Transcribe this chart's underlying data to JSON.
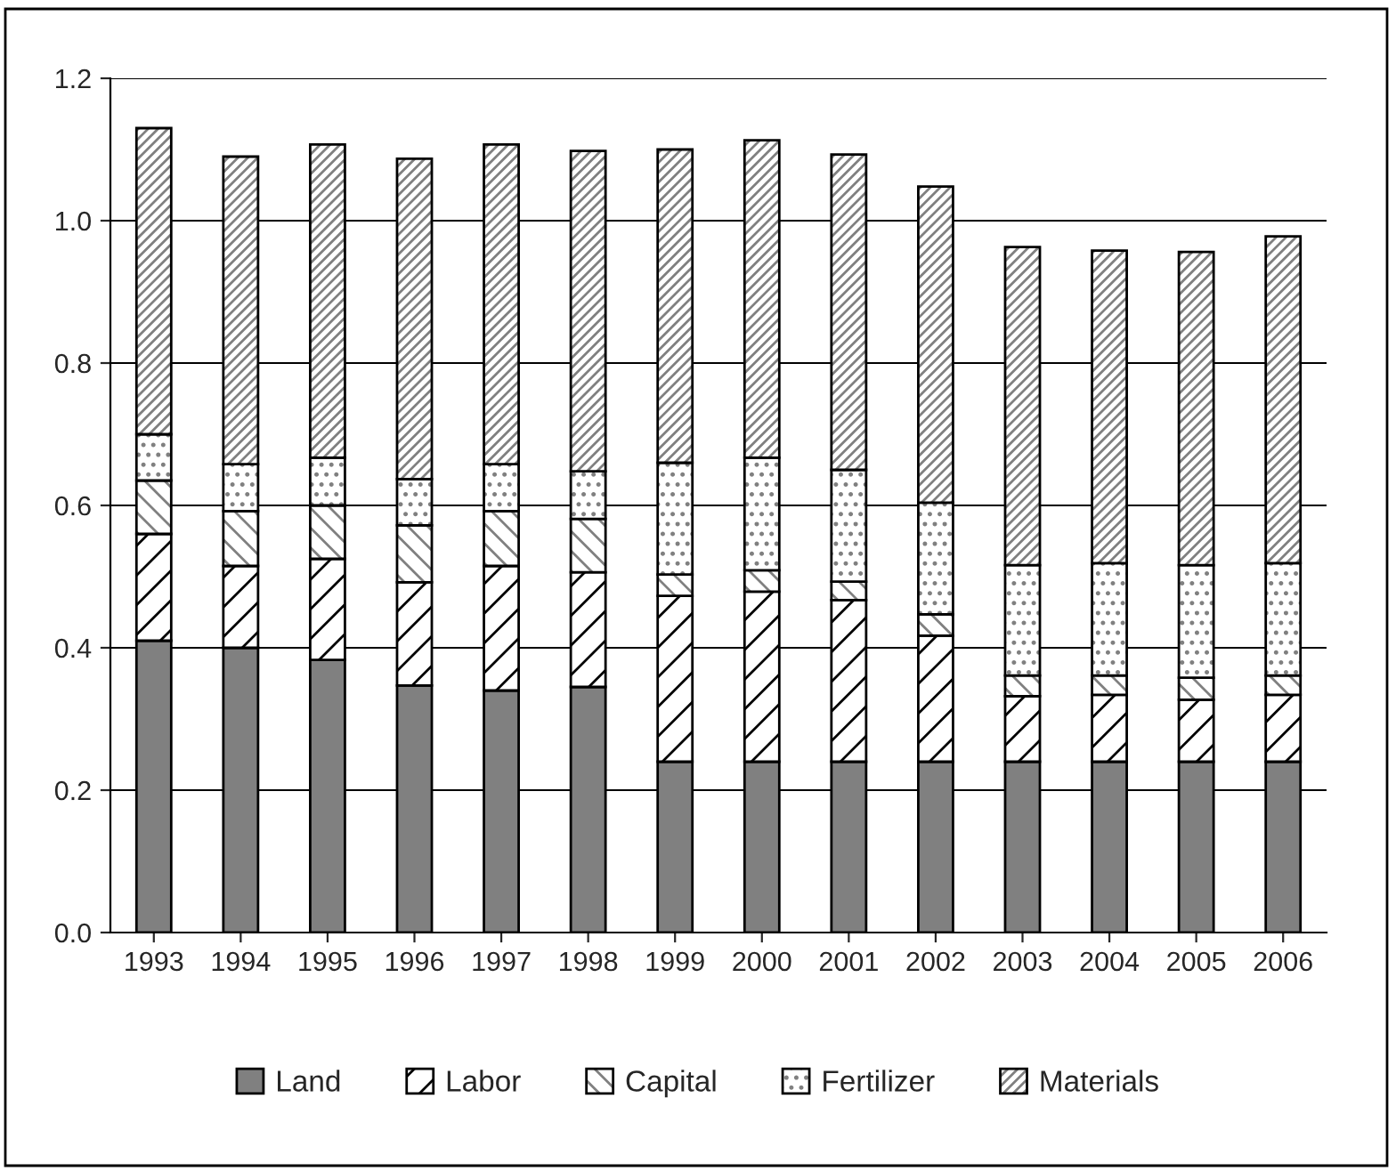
{
  "chart_data": {
    "type": "bar",
    "stacked": true,
    "categories": [
      "1993",
      "1994",
      "1995",
      "1996",
      "1997",
      "1998",
      "1999",
      "2000",
      "2001",
      "2002",
      "2003",
      "2004",
      "2005",
      "2006"
    ],
    "series": [
      {
        "name": "Land",
        "color": "#808080",
        "values": [
          0.41,
          0.4,
          0.383,
          0.347,
          0.34,
          0.345,
          0.24,
          0.24,
          0.24,
          0.24,
          0.24,
          0.24,
          0.24,
          0.24
        ]
      },
      {
        "name": "Labor",
        "color": "#000000",
        "values": [
          0.15,
          0.115,
          0.142,
          0.145,
          0.175,
          0.161,
          0.233,
          0.239,
          0.227,
          0.177,
          0.092,
          0.094,
          0.087,
          0.094
        ]
      },
      {
        "name": "Capital",
        "color": "#000000",
        "values": [
          0.075,
          0.077,
          0.075,
          0.08,
          0.077,
          0.075,
          0.03,
          0.03,
          0.026,
          0.03,
          0.029,
          0.027,
          0.031,
          0.027
        ]
      },
      {
        "name": "Fertilizer",
        "color": "#000000",
        "values": [
          0.065,
          0.066,
          0.067,
          0.065,
          0.066,
          0.067,
          0.157,
          0.158,
          0.157,
          0.157,
          0.155,
          0.158,
          0.158,
          0.158
        ]
      },
      {
        "name": "Materials",
        "color": "#000000",
        "values": [
          0.43,
          0.432,
          0.44,
          0.45,
          0.449,
          0.45,
          0.44,
          0.446,
          0.443,
          0.444,
          0.447,
          0.439,
          0.44,
          0.459
        ]
      }
    ],
    "ylim": [
      0,
      1.2
    ],
    "yticks": [
      {
        "value": 0,
        "label": "0.0"
      },
      {
        "value": 0.2,
        "label": "0.2"
      },
      {
        "value": 0.4,
        "label": "0.4"
      },
      {
        "value": 0.6,
        "label": "0.6"
      },
      {
        "value": 0.8,
        "label": "0.8"
      },
      {
        "value": 1.0,
        "label": "1.0"
      },
      {
        "value": 1.2,
        "label": "1.2"
      }
    ],
    "grid": "y",
    "legend": "bottom"
  }
}
